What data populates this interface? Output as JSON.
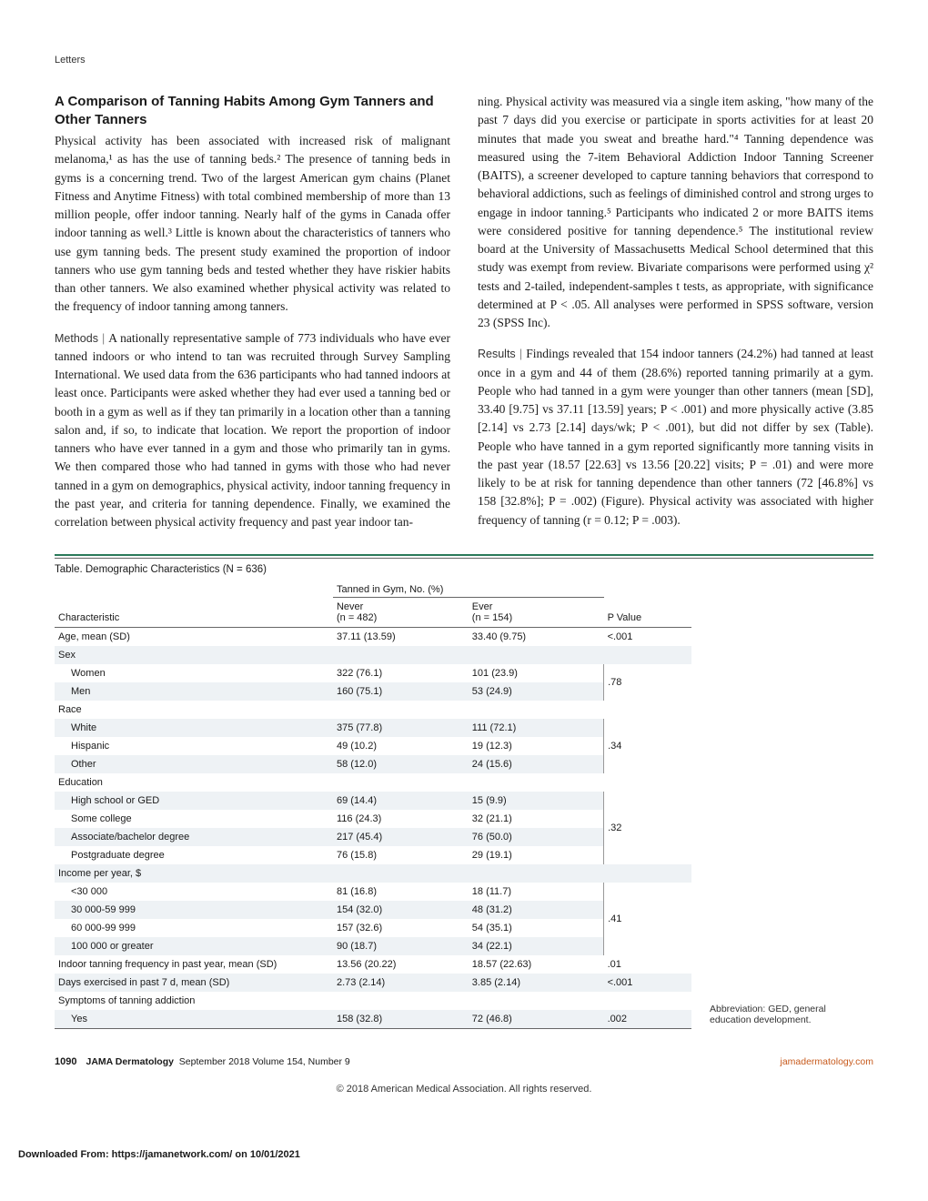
{
  "header": {
    "letters": "Letters"
  },
  "article": {
    "title": "A Comparison of Tanning Habits Among Gym Tanners and Other Tanners",
    "col1_p1": "Physical activity has been associated with increased risk of malignant melanoma,¹ as has the use of tanning beds.² The presence of tanning beds in gyms is a concerning trend. Two of the largest American gym chains (Planet Fitness and Anytime Fitness) with total combined membership of more than 13 million people, offer indoor tanning. Nearly half of the gyms in Canada offer indoor tanning as well.³ Little is known about the characteristics of tanners who use gym tanning beds. The present study examined the proportion of indoor tanners who use gym tanning beds and tested whether they have riskier habits than other tanners. We also examined whether physical activity was related to the frequency of indoor tanning among tanners.",
    "col1_methods_label": "Methods",
    "col1_p2": "A nationally representative sample of 773 individuals who have ever tanned indoors or who intend to tan was recruited through Survey Sampling International. We used data from the 636 participants who had tanned indoors at least once. Participants were asked whether they had ever used a tanning bed or booth in a gym as well as if they tan primarily in a location other than a tanning salon and, if so, to indicate that location. We report the proportion of indoor tanners who have ever tanned in a gym and those who primarily tan in gyms. We then compared those who had tanned in gyms with those who had never tanned in a gym on demographics, physical activity, indoor tanning frequency in the past year, and criteria for tanning dependence. Finally, we examined the correlation between physical activity frequency and past year indoor tan-",
    "col2_p1": "ning. Physical activity was measured via a single item asking, \"how many of the past 7 days did you exercise or participate in sports activities for at least 20 minutes that made you sweat and breathe hard.\"⁴ Tanning dependence was measured using the 7-item Behavioral Addiction Indoor Tanning Screener (BAITS), a screener developed to capture tanning behaviors that correspond to behavioral addictions, such as feelings of diminished control and strong urges to engage in indoor tanning.⁵ Participants who indicated 2 or more BAITS items were considered positive for tanning dependence.⁵ The institutional review board at the University of Massachusetts Medical School determined that this study was exempt from review. Bivariate comparisons were performed using χ² tests and 2-tailed, independent-samples t tests, as appropriate, with significance determined at P < .05. All analyses were performed in SPSS software, version 23 (SPSS Inc).",
    "col2_results_label": "Results",
    "col2_p2": "Findings revealed that 154 indoor tanners (24.2%) had tanned at least once in a gym and 44 of them (28.6%) reported tanning primarily at a gym. People who had tanned in a gym were younger than other tanners (mean [SD], 33.40 [9.75] vs 37.11 [13.59] years; P < .001) and more physically active (3.85 [2.14] vs 2.73 [2.14] days/wk; P < .001), but did not differ by sex (Table). People who have tanned in a gym reported significantly more tanning visits in the past year (18.57 [22.63] vs 13.56 [20.22] visits; P = .01) and were more likely to be at risk for tanning dependence than other tanners (72 [46.8%] vs 158 [32.8%]; P = .002) (Figure). Physical activity was associated with higher frequency of tanning (r = 0.12; P = .003)."
  },
  "table": {
    "title": "Table. Demographic Characteristics (N = 636)",
    "group_header": "Tanned in Gym, No. (%)",
    "headers": {
      "char": "Characteristic",
      "never": "Never\n(n = 482)",
      "ever": "Ever\n(n = 154)",
      "p": "P Value"
    },
    "rows": [
      {
        "c": "Age, mean (SD)",
        "n": "37.11 (13.59)",
        "e": "33.40 (9.75)",
        "p": "<.001"
      },
      {
        "c": "Sex",
        "n": "",
        "e": "",
        "p": "",
        "header": true
      },
      {
        "c": "Women",
        "n": "322 (76.1)",
        "e": "101 (23.9)",
        "indent": 1,
        "pmerge": 2,
        "p": ".78"
      },
      {
        "c": "Men",
        "n": "160 (75.1)",
        "e": "53 (24.9)",
        "indent": 1,
        "pskip": true
      },
      {
        "c": "Race",
        "n": "",
        "e": "",
        "p": "",
        "header": true
      },
      {
        "c": "White",
        "n": "375 (77.8)",
        "e": "111 (72.1)",
        "indent": 1,
        "pmerge": 3,
        "p": ".34"
      },
      {
        "c": "Hispanic",
        "n": "49 (10.2)",
        "e": "19 (12.3)",
        "indent": 1,
        "pskip": true
      },
      {
        "c": "Other",
        "n": "58 (12.0)",
        "e": "24 (15.6)",
        "indent": 1,
        "pskip": true
      },
      {
        "c": "Education",
        "n": "",
        "e": "",
        "p": "",
        "header": true
      },
      {
        "c": "High school or GED",
        "n": "69 (14.4)",
        "e": "15 (9.9)",
        "indent": 1,
        "pmerge": 4,
        "p": ".32"
      },
      {
        "c": "Some college",
        "n": "116 (24.3)",
        "e": "32 (21.1)",
        "indent": 1,
        "pskip": true
      },
      {
        "c": "Associate/bachelor degree",
        "n": "217 (45.4)",
        "e": "76 (50.0)",
        "indent": 1,
        "pskip": true
      },
      {
        "c": "Postgraduate degree",
        "n": "76 (15.8)",
        "e": "29 (19.1)",
        "indent": 1,
        "pskip": true
      },
      {
        "c": "Income per year, $",
        "n": "",
        "e": "",
        "p": "",
        "header": true
      },
      {
        "c": "<30 000",
        "n": "81 (16.8)",
        "e": "18 (11.7)",
        "indent": 1,
        "pmerge": 4,
        "p": ".41"
      },
      {
        "c": "30 000-59 999",
        "n": "154 (32.0)",
        "e": "48 (31.2)",
        "indent": 1,
        "pskip": true
      },
      {
        "c": "60 000-99 999",
        "n": "157 (32.6)",
        "e": "54 (35.1)",
        "indent": 1,
        "pskip": true
      },
      {
        "c": "100 000 or greater",
        "n": "90 (18.7)",
        "e": "34 (22.1)",
        "indent": 1,
        "pskip": true
      },
      {
        "c": "Indoor tanning frequency in past year, mean (SD)",
        "n": "13.56 (20.22)",
        "e": "18.57 (22.63)",
        "p": ".01"
      },
      {
        "c": "Days exercised in past 7 d, mean (SD)",
        "n": "2.73 (2.14)",
        "e": "3.85 (2.14)",
        "p": "<.001"
      },
      {
        "c": "Symptoms of tanning addiction",
        "n": "",
        "e": "",
        "p": "",
        "header": true
      },
      {
        "c": "Yes",
        "n": "158 (32.8)",
        "e": "72 (46.8)",
        "p": ".002",
        "indent": 1,
        "last": true
      }
    ],
    "abbrev": "Abbreviation: GED, general education development."
  },
  "footer": {
    "page": "1090",
    "journal": "JAMA Dermatology",
    "issue": "September 2018  Volume 154, Number 9",
    "link": "jamadermatology.com",
    "copyright": "© 2018 American Medical Association. All rights reserved.",
    "download": "Downloaded From: https://jamanetwork.com/ on 10/01/2021"
  }
}
